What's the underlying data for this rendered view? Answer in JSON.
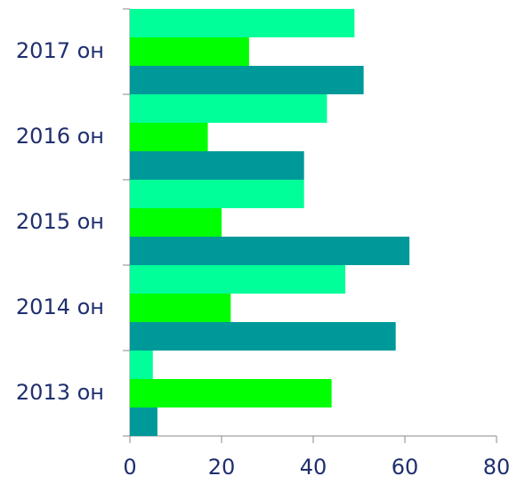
{
  "chart_data": {
    "type": "hbar",
    "categories": [
      "2013 он",
      "2014 он",
      "2015 он",
      "2016 он",
      "2017 он"
    ],
    "series": [
      {
        "color": "#00ff99",
        "values": [
          5,
          47,
          38,
          43,
          49
        ]
      },
      {
        "color": "#00ff00",
        "values": [
          44,
          22,
          20,
          17,
          26
        ]
      },
      {
        "color": "#009999",
        "values": [
          6,
          58,
          61,
          38,
          51
        ]
      }
    ],
    "xlim": [
      0,
      80
    ],
    "xticks": [
      0,
      20,
      40,
      60,
      80
    ],
    "grid": false
  }
}
